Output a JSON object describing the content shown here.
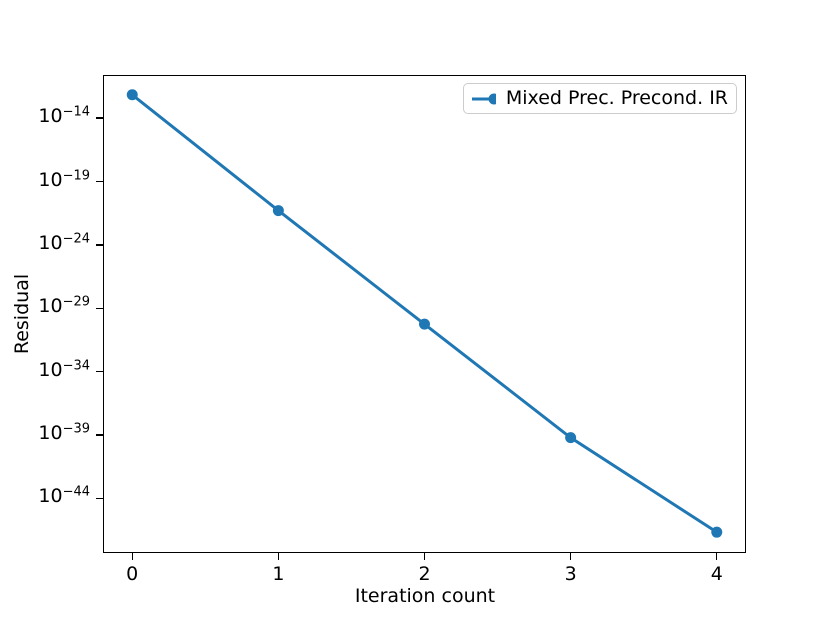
{
  "window": {
    "background": "#ffffff"
  },
  "chart_data": {
    "type": "line",
    "title": "",
    "xlabel": "Iteration count",
    "ylabel": "Residual",
    "x_scale": "linear",
    "y_scale": "log",
    "grid": false,
    "x": [
      0,
      1,
      2,
      3,
      4
    ],
    "series": [
      {
        "name": "Mixed Prec. Precond. IR",
        "color": "#1f77b4",
        "marker": "circle",
        "linestyle": "solid",
        "values": [
          6.9e-13,
          5.1e-22,
          5.6e-31,
          6.3e-40,
          2.2e-47
        ]
      }
    ],
    "x_ticks": [
      0,
      1,
      2,
      3,
      4
    ],
    "y_tick_exponents": [
      -14,
      -19,
      -24,
      -29,
      -34,
      -39,
      -44
    ],
    "xlim": [
      -0.2,
      4.2
    ],
    "ylim_log10": [
      -48.3,
      -10.6
    ],
    "legend": {
      "position": "upper right",
      "entries": [
        "Mixed Prec. Precond. IR"
      ]
    }
  },
  "styles": {
    "axis_color": "#000000",
    "text_color": "#000000",
    "legend_border": "#cccccc",
    "legend_background": "#ffffff"
  }
}
